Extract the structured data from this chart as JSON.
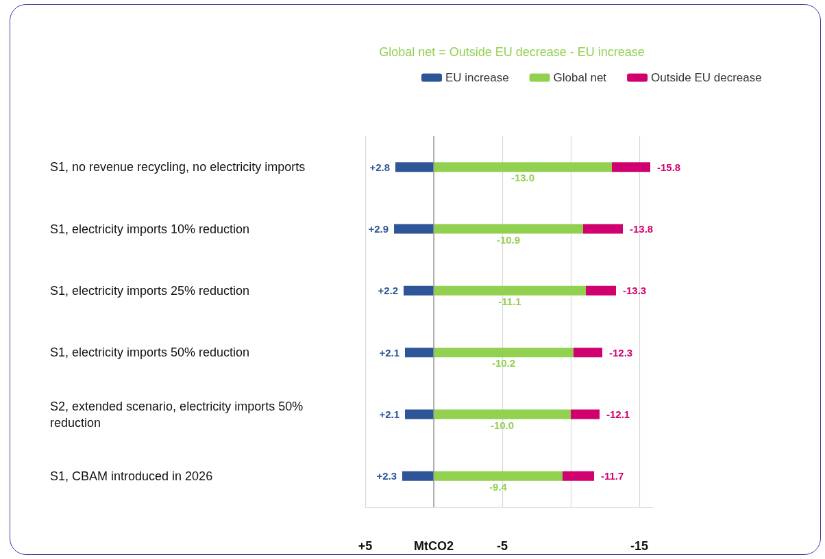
{
  "chart_data": {
    "type": "bar",
    "orientation": "horizontal",
    "stacked": true,
    "subtitle": "Global net = Outside EU decrease - EU increase",
    "categories": [
      "S1, no revenue recycling, no electricity imports",
      "S1, electricity imports 10% reduction",
      "S1, electricity imports 25% reduction",
      "S1, electricity imports 50% reduction",
      "S2, extended scenario, electricity imports 50% reduction",
      "S1, CBAM introduced in 2026"
    ],
    "series": [
      {
        "name": "EU increase",
        "color": "#2e5597",
        "values": [
          2.8,
          2.9,
          2.2,
          2.1,
          2.1,
          2.3
        ],
        "value_labels": [
          "+2.8",
          "+2.9",
          "+2.2",
          "+2.1",
          "+2.1",
          "+2.3"
        ]
      },
      {
        "name": "Global net",
        "color": "#92d050",
        "values": [
          -13.0,
          -10.9,
          -11.1,
          -10.2,
          -10.0,
          -9.4
        ],
        "value_labels": [
          "-13.0",
          "-10.9",
          "-11.1",
          "-10.2",
          "-10.0",
          "-9.4"
        ]
      },
      {
        "name": "Outside EU decrease",
        "color": "#d0006f",
        "values": [
          -2.8,
          -2.9,
          -2.2,
          -2.1,
          -2.1,
          -2.3
        ]
      }
    ],
    "annotations": [
      {
        "text": "-15.8",
        "x": -15.8,
        "y": "S1, no revenue recycling, no electricity imports"
      },
      {
        "text": "-13.8",
        "x": -13.8,
        "y": "S1, electricity imports 10% reduction"
      },
      {
        "text": "-13.3",
        "x": -13.3,
        "y": "S1, electricity imports 25% reduction"
      },
      {
        "text": "-12.3",
        "x": -12.3,
        "y": "S1, electricity imports 50% reduction"
      },
      {
        "text": "-12.1",
        "x": -12.1,
        "y": "S2, extended scenario, electricity imports 50% reduction"
      },
      {
        "text": "-11.7",
        "x": -11.7,
        "y": "S1, CBAM introduced in 2026"
      }
    ],
    "xlim": [
      5,
      -16
    ],
    "xticks": [
      {
        "value": 5,
        "label": "+5"
      },
      {
        "value": 0,
        "label": "MtCO2"
      },
      -5,
      {
        "value": -10,
        "label": null
      },
      -15
    ],
    "ref_lines": [
      {
        "axis": "x",
        "value": 0,
        "color": "#999999"
      }
    ],
    "grid": "x",
    "legend": "top"
  }
}
